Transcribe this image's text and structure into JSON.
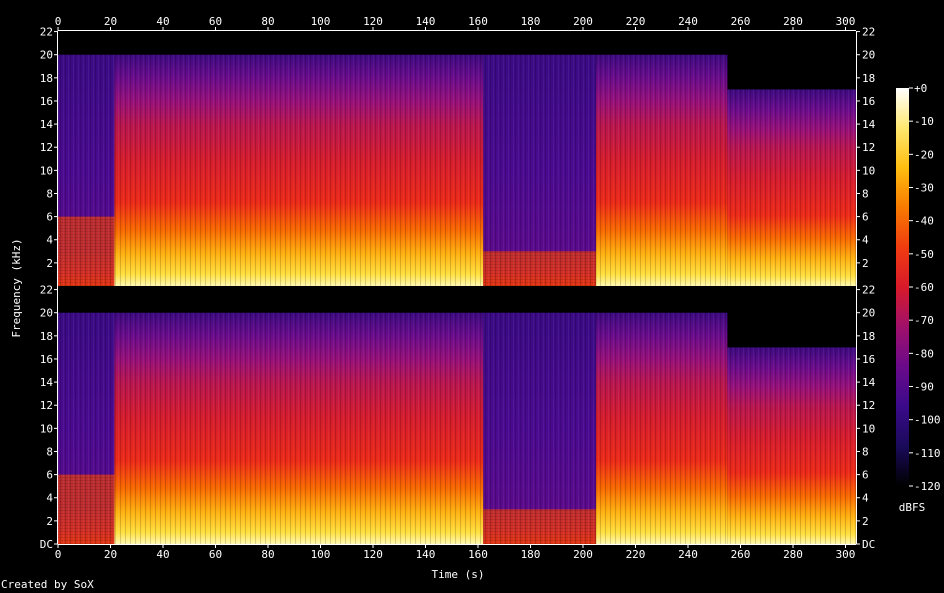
{
  "footer": "Created by SoX",
  "colors": {
    "background": "#000000",
    "text": "#ffffff",
    "colormap": [
      "#000000",
      "#1a0a5a",
      "#3a0a8a",
      "#6a0a8a",
      "#a0106a",
      "#d81a2a",
      "#f03c10",
      "#f87a00",
      "#ffbe10",
      "#ffe870",
      "#ffffff"
    ]
  },
  "chart_data": {
    "type": "heatmap",
    "title": "",
    "xlabel": "Time (s)",
    "ylabel": "Frequency (kHz)",
    "xlim": [
      0,
      304
    ],
    "x_ticks": [
      0,
      20,
      40,
      60,
      80,
      100,
      120,
      140,
      160,
      180,
      200,
      220,
      240,
      260,
      280,
      300
    ],
    "channels": [
      {
        "name": "",
        "ylim": [
          0,
          22.05
        ],
        "y_ticks": [
          {
            "value": 22,
            "label": "22"
          },
          {
            "value": 20,
            "label": "20"
          },
          {
            "value": 18,
            "label": "18"
          },
          {
            "value": 16,
            "label": "16"
          },
          {
            "value": 14,
            "label": "14"
          },
          {
            "value": 12,
            "label": "12"
          },
          {
            "value": 10,
            "label": "10"
          },
          {
            "value": 8,
            "label": "8"
          },
          {
            "value": 6,
            "label": "6"
          },
          {
            "value": 4,
            "label": "4"
          },
          {
            "value": 2,
            "label": "2"
          }
        ]
      },
      {
        "name": "",
        "ylim": [
          0,
          22.05
        ],
        "y_ticks": [
          {
            "value": 22,
            "label": "22"
          },
          {
            "value": 20,
            "label": "20"
          },
          {
            "value": 18,
            "label": "18"
          },
          {
            "value": 16,
            "label": "16"
          },
          {
            "value": 14,
            "label": "14"
          },
          {
            "value": 12,
            "label": "12"
          },
          {
            "value": 10,
            "label": "10"
          },
          {
            "value": 8,
            "label": "8"
          },
          {
            "value": 6,
            "label": "6"
          },
          {
            "value": 4,
            "label": "4"
          },
          {
            "value": 2,
            "label": "2"
          },
          {
            "value": 0,
            "label": "DC"
          }
        ]
      }
    ],
    "segments": [
      {
        "start": 0,
        "end": 21.5,
        "cutoff_khz": 20,
        "level": "quiet",
        "body_cutoff_khz": 6
      },
      {
        "start": 21.5,
        "end": 162,
        "cutoff_khz": 20,
        "level": "loud"
      },
      {
        "start": 162,
        "end": 205,
        "cutoff_khz": 20,
        "level": "quiet",
        "body_cutoff_khz": 3
      },
      {
        "start": 205,
        "end": 255,
        "cutoff_khz": 20,
        "level": "loud"
      },
      {
        "start": 255,
        "end": 304,
        "cutoff_khz": 17,
        "level": "loud"
      }
    ],
    "colorbar": {
      "label": "dBFS",
      "range": [
        -120,
        0
      ],
      "ticks": [
        {
          "value": 0,
          "label": "+0"
        },
        {
          "value": -10,
          "label": "-10"
        },
        {
          "value": -20,
          "label": "-20"
        },
        {
          "value": -30,
          "label": "-30"
        },
        {
          "value": -40,
          "label": "-40"
        },
        {
          "value": -50,
          "label": "-50"
        },
        {
          "value": -60,
          "label": "-60"
        },
        {
          "value": -70,
          "label": "-70"
        },
        {
          "value": -80,
          "label": "-80"
        },
        {
          "value": -90,
          "label": "-90"
        },
        {
          "value": -100,
          "label": "-100"
        },
        {
          "value": -110,
          "label": "-110"
        },
        {
          "value": -120,
          "label": "-120"
        }
      ]
    }
  }
}
